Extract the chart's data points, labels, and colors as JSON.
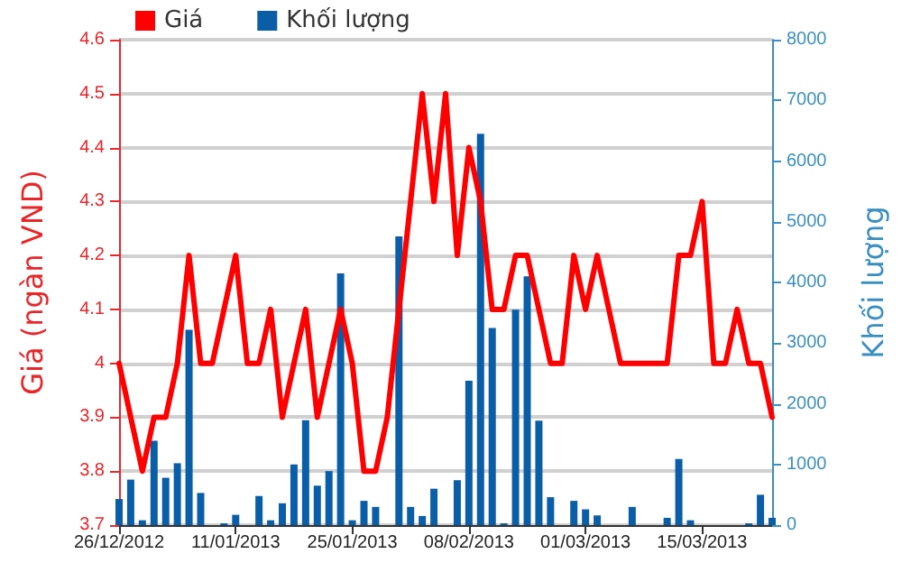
{
  "chart_data": {
    "type": "line",
    "ylabel": "Giá (ngàn VND)",
    "y2label": "Khối lượng",
    "categories": [
      "26/12/2012",
      null,
      null,
      null,
      null,
      null,
      null,
      null,
      null,
      null,
      "11/01/2013",
      null,
      null,
      null,
      null,
      null,
      null,
      null,
      null,
      null,
      "25/01/2013",
      null,
      null,
      null,
      null,
      null,
      null,
      null,
      null,
      null,
      "08/02/2013",
      null,
      null,
      null,
      null,
      null,
      null,
      null,
      null,
      null,
      "01/03/2013",
      null,
      null,
      null,
      null,
      null,
      null,
      null,
      null,
      null,
      "15/03/2013",
      null,
      null,
      null,
      null,
      null,
      null
    ],
    "series": [
      {
        "name": "Giá",
        "color": "#ff0000",
        "values": [
          4.0,
          3.9,
          3.8,
          3.9,
          3.9,
          4.0,
          4.2,
          4.0,
          4.0,
          4.1,
          4.2,
          4.0,
          4.0,
          4.1,
          3.9,
          4.0,
          4.1,
          3.9,
          4.0,
          4.1,
          4.0,
          3.8,
          3.8,
          3.9,
          4.1,
          4.3,
          4.5,
          4.3,
          4.5,
          4.2,
          4.4,
          4.3,
          4.1,
          4.1,
          4.2,
          4.2,
          4.1,
          4.0,
          4.0,
          4.2,
          4.1,
          4.2,
          4.1,
          4.0,
          4.0,
          4.0,
          4.0,
          4.0,
          4.2,
          4.2,
          4.3,
          4.0,
          4.0,
          4.1,
          4.0,
          4.0,
          3.9
        ]
      },
      {
        "name": "Khối lượng",
        "type": "bar",
        "axis": "y2",
        "color": "#0a5ea8",
        "values": [
          430,
          750,
          80,
          1390,
          780,
          1020,
          3220,
          530,
          0,
          30,
          170,
          0,
          480,
          80,
          360,
          1000,
          1730,
          650,
          890,
          4150,
          80,
          400,
          300,
          0,
          4760,
          300,
          150,
          600,
          0,
          740,
          2380,
          6450,
          3250,
          30,
          3550,
          4100,
          1720,
          460,
          0,
          400,
          260,
          160,
          0,
          0,
          300,
          0,
          0,
          120,
          1090,
          80,
          0,
          0,
          0,
          0,
          30,
          500,
          120
        ]
      }
    ],
    "ylim": [
      3.7,
      4.6
    ],
    "yticks": [
      3.7,
      3.8,
      3.9,
      4,
      4.1,
      4.2,
      4.3,
      4.4,
      4.5,
      4.6
    ],
    "y2lim": [
      0,
      8000
    ],
    "y2ticks": [
      0,
      1000,
      2000,
      3000,
      4000,
      5000,
      6000,
      7000,
      8000
    ],
    "grid": "y",
    "legend": "top left",
    "marker": "none",
    "line_style": "solid"
  }
}
